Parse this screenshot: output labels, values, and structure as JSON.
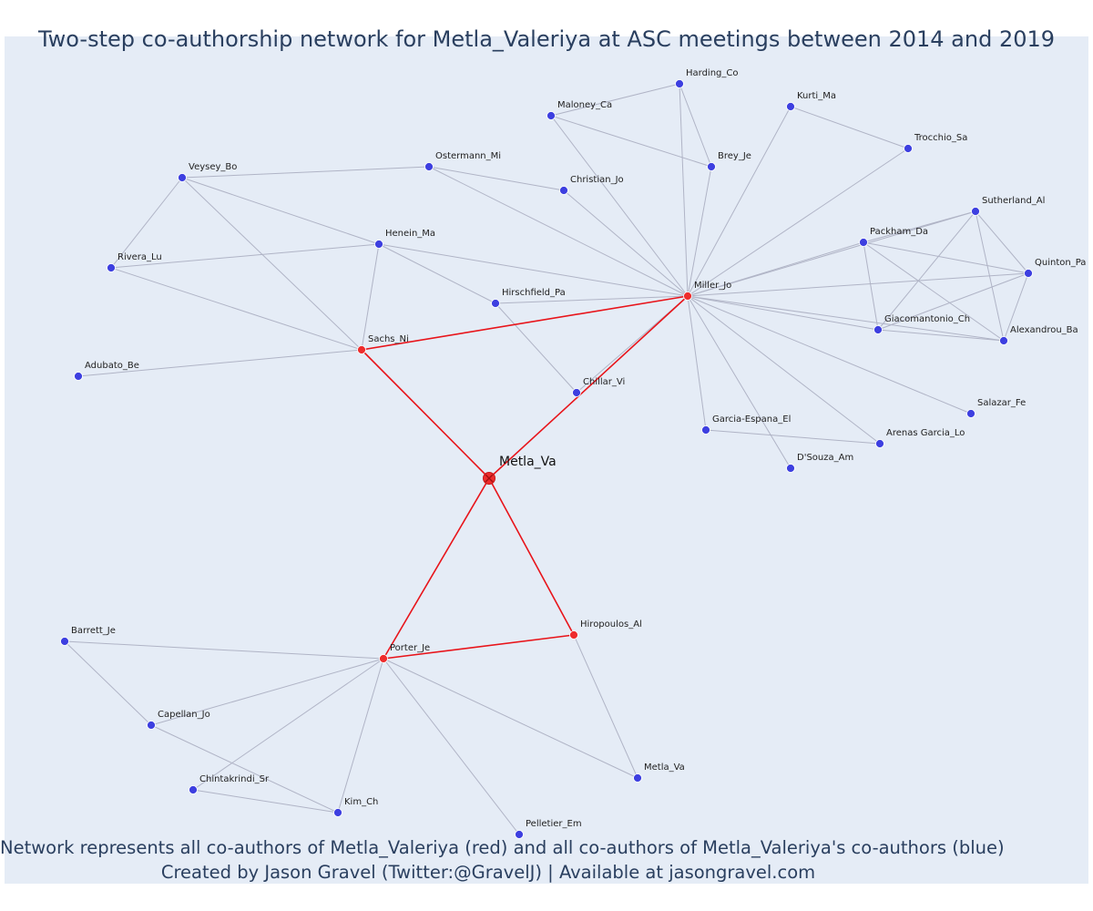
{
  "title": "Two-step co-authorship network for Metla_Valeriya at ASC meetings between 2014 and 2019",
  "footer": {
    "line1": "Network represents all co-authors of Metla_Valeriya (red) and all co-authors of Metla_Valeriya's co-authors (blue)",
    "line2": "Created by Jason Gravel (Twitter:@GravelJ) | Available at jasongravel.com"
  },
  "colors": {
    "background": "#e5ecf6",
    "first_degree": "#ee2c2c",
    "second_degree": "#3d3fe0",
    "focus_edge": "#e8141a",
    "other_edge": "#b0b4c6",
    "text": "#2a3f5f"
  },
  "network": {
    "focus": "metla_va_focus",
    "nodes": [
      {
        "id": "metla_va_focus",
        "label": "Metla_Va",
        "group": "focus"
      },
      {
        "id": "sachs_ni",
        "label": "Sachs_Ni",
        "group": "first_degree"
      },
      {
        "id": "miller_jo",
        "label": "Miller_Jo",
        "group": "first_degree"
      },
      {
        "id": "porter_je",
        "label": "Porter_Je",
        "group": "first_degree"
      },
      {
        "id": "hiropoulos_al",
        "label": "Hiropoulos_Al",
        "group": "first_degree"
      },
      {
        "id": "chillar_vi",
        "label": "Chillar_Vi",
        "group": "second_degree"
      },
      {
        "id": "harding_co",
        "label": "Harding_Co",
        "group": "second_degree"
      },
      {
        "id": "maloney_ca",
        "label": "Maloney_Ca",
        "group": "second_degree"
      },
      {
        "id": "kurti_ma",
        "label": "Kurti_Ma",
        "group": "second_degree"
      },
      {
        "id": "trocchio_sa",
        "label": "Trocchio_Sa",
        "group": "second_degree"
      },
      {
        "id": "brey_je",
        "label": "Brey_Je",
        "group": "second_degree"
      },
      {
        "id": "christian_jo",
        "label": "Christian_Jo",
        "group": "second_degree"
      },
      {
        "id": "ostermann_mi",
        "label": "Ostermann_Mi",
        "group": "second_degree"
      },
      {
        "id": "veysey_bo",
        "label": "Veysey_Bo",
        "group": "second_degree"
      },
      {
        "id": "henein_ma",
        "label": "Henein_Ma",
        "group": "second_degree"
      },
      {
        "id": "rivera_lu",
        "label": "Rivera_Lu",
        "group": "second_degree"
      },
      {
        "id": "hirschfield_pa",
        "label": "Hirschfield_Pa",
        "group": "second_degree"
      },
      {
        "id": "adubato_be",
        "label": "Adubato_Be",
        "group": "second_degree"
      },
      {
        "id": "sutherland_al",
        "label": "Sutherland_Al",
        "group": "second_degree"
      },
      {
        "id": "packham_da",
        "label": "Packham_Da",
        "group": "second_degree"
      },
      {
        "id": "quinton_pa",
        "label": "Quinton_Pa",
        "group": "second_degree"
      },
      {
        "id": "giacomantonio_ch",
        "label": "Giacomantonio_Ch",
        "group": "second_degree"
      },
      {
        "id": "alexandrou_ba",
        "label": "Alexandrou_Ba",
        "group": "second_degree"
      },
      {
        "id": "salazar_fe",
        "label": "Salazar_Fe",
        "group": "second_degree"
      },
      {
        "id": "garcia_espana_el",
        "label": "Garcia-Espana_El",
        "group": "second_degree"
      },
      {
        "id": "arenas_garcia_lo",
        "label": "Arenas Garcia_Lo",
        "group": "second_degree"
      },
      {
        "id": "dsouza_am",
        "label": "D'Souza_Am",
        "group": "second_degree"
      },
      {
        "id": "barrett_je",
        "label": "Barrett_Je",
        "group": "second_degree"
      },
      {
        "id": "capellan_jo",
        "label": "Capellan_Jo",
        "group": "second_degree"
      },
      {
        "id": "chintakrindi_sr",
        "label": "Chintakrindi_Sr",
        "group": "second_degree"
      },
      {
        "id": "kim_ch",
        "label": "Kim_Ch",
        "group": "second_degree"
      },
      {
        "id": "pelletier_em",
        "label": "Pelletier_Em",
        "group": "second_degree"
      },
      {
        "id": "metla_va_other",
        "label": "Metla_Va",
        "group": "second_degree"
      }
    ],
    "edges": [
      [
        "metla_va_focus",
        "sachs_ni"
      ],
      [
        "metla_va_focus",
        "miller_jo"
      ],
      [
        "metla_va_focus",
        "porter_je"
      ],
      [
        "metla_va_focus",
        "hiropoulos_al"
      ],
      [
        "sachs_ni",
        "miller_jo"
      ],
      [
        "porter_je",
        "hiropoulos_al"
      ],
      [
        "sachs_ni",
        "veysey_bo"
      ],
      [
        "sachs_ni",
        "rivera_lu"
      ],
      [
        "sachs_ni",
        "henein_ma"
      ],
      [
        "sachs_ni",
        "adubato_be"
      ],
      [
        "veysey_bo",
        "rivera_lu"
      ],
      [
        "veysey_bo",
        "ostermann_mi"
      ],
      [
        "veysey_bo",
        "henein_ma"
      ],
      [
        "rivera_lu",
        "henein_ma"
      ],
      [
        "henein_ma",
        "hirschfield_pa"
      ],
      [
        "henein_ma",
        "miller_jo"
      ],
      [
        "ostermann_mi",
        "christian_jo"
      ],
      [
        "ostermann_mi",
        "miller_jo"
      ],
      [
        "hirschfield_pa",
        "miller_jo"
      ],
      [
        "hirschfield_pa",
        "chillar_vi"
      ],
      [
        "chillar_vi",
        "miller_jo"
      ],
      [
        "christian_jo",
        "miller_jo"
      ],
      [
        "maloney_ca",
        "harding_co"
      ],
      [
        "maloney_ca",
        "brey_je"
      ],
      [
        "maloney_ca",
        "miller_jo"
      ],
      [
        "harding_co",
        "brey_je"
      ],
      [
        "harding_co",
        "miller_jo"
      ],
      [
        "brey_je",
        "miller_jo"
      ],
      [
        "kurti_ma",
        "trocchio_sa"
      ],
      [
        "kurti_ma",
        "miller_jo"
      ],
      [
        "trocchio_sa",
        "miller_jo"
      ],
      [
        "miller_jo",
        "packham_da"
      ],
      [
        "miller_jo",
        "sutherland_al"
      ],
      [
        "miller_jo",
        "quinton_pa"
      ],
      [
        "miller_jo",
        "giacomantonio_ch"
      ],
      [
        "miller_jo",
        "alexandrou_ba"
      ],
      [
        "miller_jo",
        "salazar_fe"
      ],
      [
        "miller_jo",
        "arenas_garcia_lo"
      ],
      [
        "miller_jo",
        "garcia_espana_el"
      ],
      [
        "miller_jo",
        "dsouza_am"
      ],
      [
        "packham_da",
        "sutherland_al"
      ],
      [
        "packham_da",
        "quinton_pa"
      ],
      [
        "packham_da",
        "giacomantonio_ch"
      ],
      [
        "packham_da",
        "alexandrou_ba"
      ],
      [
        "sutherland_al",
        "quinton_pa"
      ],
      [
        "sutherland_al",
        "giacomantonio_ch"
      ],
      [
        "sutherland_al",
        "alexandrou_ba"
      ],
      [
        "quinton_pa",
        "giacomantonio_ch"
      ],
      [
        "quinton_pa",
        "alexandrou_ba"
      ],
      [
        "giacomantonio_ch",
        "alexandrou_ba"
      ],
      [
        "garcia_espana_el",
        "arenas_garcia_lo"
      ],
      [
        "porter_je",
        "barrett_je"
      ],
      [
        "porter_je",
        "capellan_jo"
      ],
      [
        "porter_je",
        "chintakrindi_sr"
      ],
      [
        "porter_je",
        "kim_ch"
      ],
      [
        "porter_je",
        "pelletier_em"
      ],
      [
        "porter_je",
        "metla_va_other"
      ],
      [
        "hiropoulos_al",
        "metla_va_other"
      ],
      [
        "barrett_je",
        "capellan_jo"
      ],
      [
        "capellan_jo",
        "kim_ch"
      ],
      [
        "chintakrindi_sr",
        "kim_ch"
      ]
    ]
  }
}
